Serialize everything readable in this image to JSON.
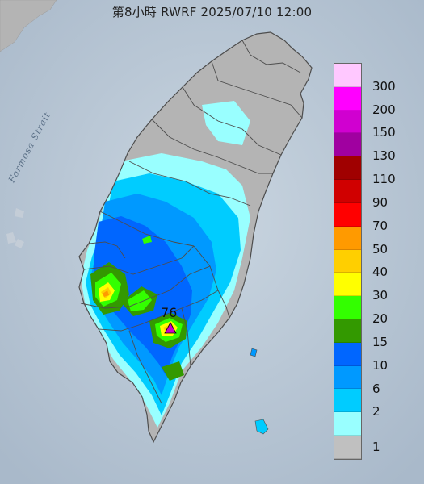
{
  "header": {
    "title": "第8小時  RWRF 2025/07/10 12:00"
  },
  "map": {
    "sea_label": "Formosa Strait",
    "peak_value": "76",
    "peak_marker": "triangle-marker",
    "colors": {
      "land": "#b4b4b4",
      "sea": "#b8c6d4",
      "border": "#4d4d4d"
    }
  },
  "legend": {
    "labels": [
      "300",
      "200",
      "150",
      "130",
      "110",
      "90",
      "70",
      "50",
      "40",
      "30",
      "20",
      "15",
      "10",
      "6",
      "2",
      "1"
    ],
    "colors": [
      "#ffc8ff",
      "#ff00ff",
      "#d000d0",
      "#a000a0",
      "#a00000",
      "#d00000",
      "#ff0000",
      "#ff9a00",
      "#ffcf00",
      "#ffff00",
      "#33ff00",
      "#339900",
      "#0066ff",
      "#0099ff",
      "#00ccff",
      "#99ffff",
      "#c0c0c0"
    ]
  }
}
